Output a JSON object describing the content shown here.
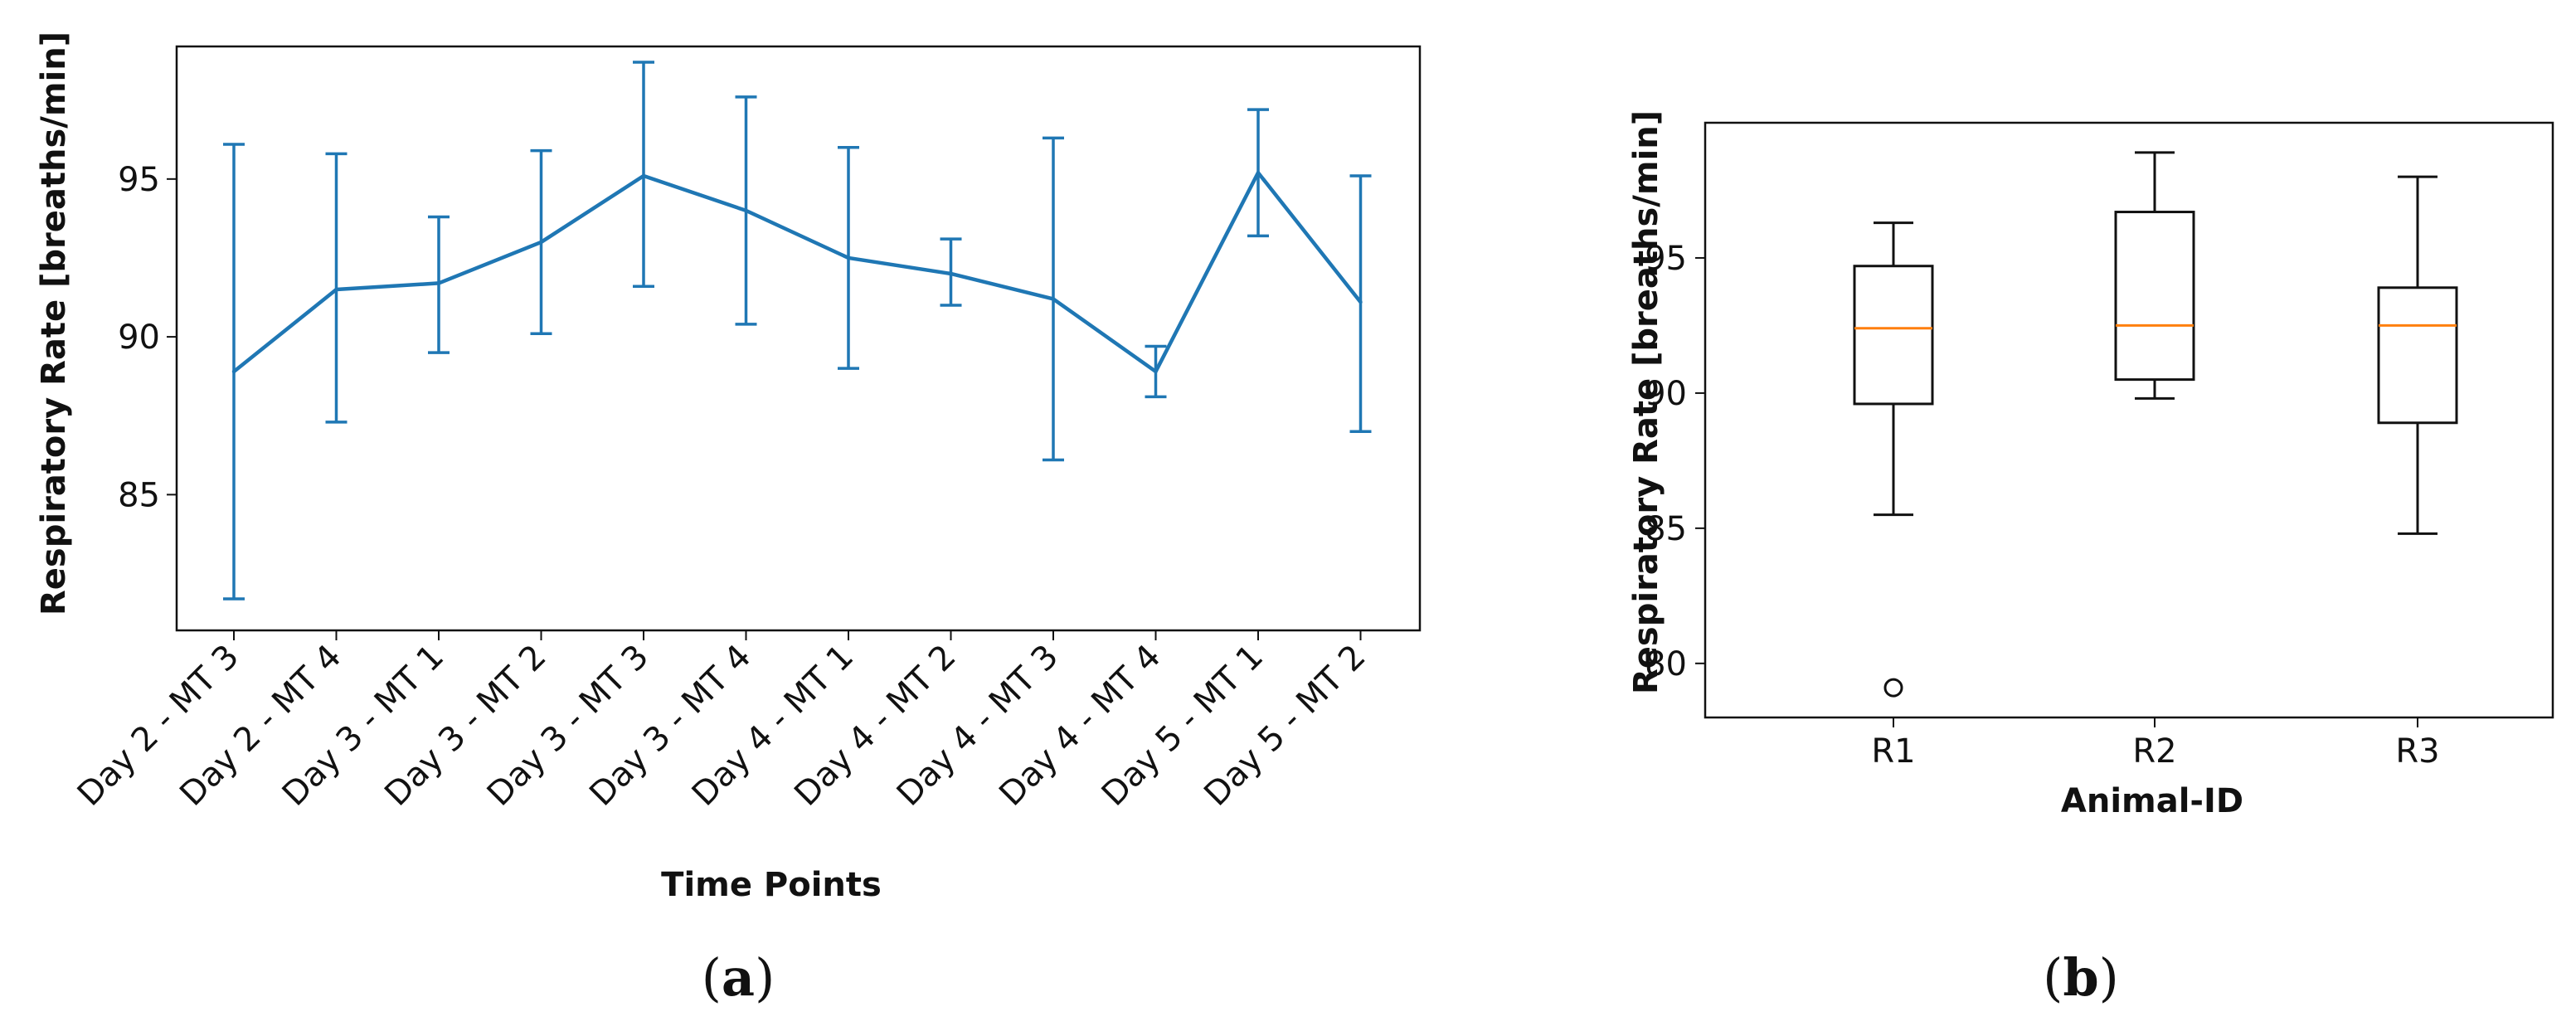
{
  "chart_data": [
    {
      "panel": "a",
      "type": "line",
      "subtitle": "(a)",
      "subtitle_letter": "a",
      "xlabel": "Time Points",
      "ylabel": "Respiratory Rate [breaths/min]",
      "ylim": [
        80.7,
        99.2
      ],
      "yticks": [
        85,
        90,
        95
      ],
      "grid": false,
      "line_color": "#1f77b4",
      "categories": [
        "Day 2 - MT 3",
        "Day 2 - MT 4",
        "Day 3 - MT 1",
        "Day 3 - MT 2",
        "Day 3 - MT 3",
        "Day 3 - MT 4",
        "Day 4 - MT 1",
        "Day 4 - MT 2",
        "Day 4 - MT 3",
        "Day 4 - MT 4",
        "Day 5 - MT 1",
        "Day 5 - MT 2"
      ],
      "values": [
        88.9,
        91.5,
        91.7,
        93.0,
        95.1,
        94.0,
        92.5,
        92.0,
        91.2,
        88.9,
        95.2,
        91.1
      ],
      "error_low": [
        81.7,
        87.3,
        89.5,
        90.1,
        91.6,
        90.4,
        89.0,
        91.0,
        86.1,
        88.1,
        93.2,
        87.0
      ],
      "error_high": [
        96.1,
        95.8,
        93.8,
        95.9,
        98.7,
        97.6,
        96.0,
        93.1,
        96.3,
        89.7,
        97.2,
        95.1
      ]
    },
    {
      "panel": "b",
      "type": "box",
      "subtitle": "(b)",
      "subtitle_letter": "b",
      "xlabel": "Animal-ID",
      "ylabel": "Respiratory Rate [breaths/min]",
      "ylim": [
        78.0,
        100.0
      ],
      "yticks": [
        80,
        85,
        90,
        95
      ],
      "grid": false,
      "median_color": "#ff7f0e",
      "categories": [
        "R1",
        "R2",
        "R3"
      ],
      "boxes": [
        {
          "label": "R1",
          "whisker_low": 85.5,
          "q1": 89.6,
          "median": 92.4,
          "q3": 94.7,
          "whisker_high": 96.3,
          "outliers": [
            79.1
          ]
        },
        {
          "label": "R2",
          "whisker_low": 89.8,
          "q1": 90.5,
          "median": 92.5,
          "q3": 96.7,
          "whisker_high": 98.9,
          "outliers": []
        },
        {
          "label": "R3",
          "whisker_low": 84.8,
          "q1": 88.9,
          "median": 92.5,
          "q3": 93.9,
          "whisker_high": 98.0,
          "outliers": []
        }
      ]
    }
  ]
}
